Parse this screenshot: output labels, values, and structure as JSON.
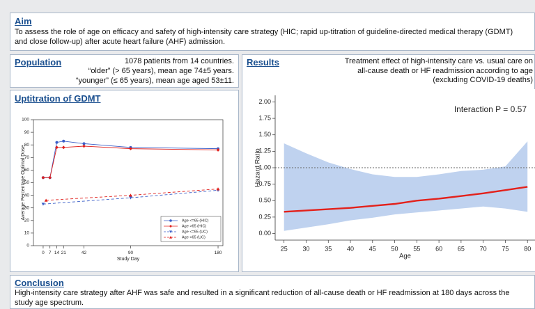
{
  "aim": {
    "title": "Aim",
    "text": "To assess the role of age on efficacy and safety of high-intensity care strategy (HIC; rapid up-titration of guideline-directed medical therapy (GDMT) and close follow-up) after acute heart failure (AHF) admission."
  },
  "population": {
    "title": "Population",
    "lines": [
      "1078 patients from 14 countries.",
      "“older” (> 65 years), mean age 74±5 years.",
      "“younger” (≤ 65 years), mean age aged 53±11."
    ]
  },
  "uptitration": {
    "title": "Uptitration of GDMT"
  },
  "results": {
    "title": "Results",
    "text": "Treatment effect of high-intensity care vs. usual care on all-cause death or HF readmission according to age (excluding COVID-19 deaths)"
  },
  "conclusion": {
    "title": "Conclusion",
    "text": "High-intensity care strategy after AHF was safe and resulted in a significant reduction of all-cause death or HF readmission at 180 days across the study age spectrum."
  },
  "chart_data": [
    {
      "type": "line",
      "xlabel": "Study Day",
      "ylabel": "Average Percentage Optimal Dose",
      "xlim": [
        -10,
        185
      ],
      "ylim": [
        0,
        100
      ],
      "xticks": [
        0,
        7,
        14,
        21,
        42,
        90,
        180
      ],
      "yticks": [
        0,
        10,
        20,
        30,
        40,
        50,
        60,
        70,
        80,
        90,
        100
      ],
      "legend": "lower right",
      "series": [
        {
          "name": "Age <=65 (HIC)",
          "color": "#3b5fc8",
          "marker": "circle",
          "dashed": false,
          "x": [
            0,
            7,
            14,
            21,
            42,
            90,
            180
          ],
          "values": [
            54,
            54,
            82,
            83,
            81,
            78,
            77
          ]
        },
        {
          "name": "Age >65 (HIC)",
          "color": "#e0201c",
          "marker": "diamond",
          "dashed": false,
          "x": [
            0,
            7,
            14,
            21,
            42,
            90,
            180
          ],
          "values": [
            54,
            54,
            78,
            78,
            79,
            77,
            76
          ]
        },
        {
          "name": "Age <=65 (UC)",
          "color": "#3b5fc8",
          "marker": "triangle-down",
          "dashed": true,
          "x": [
            0,
            90,
            180
          ],
          "values": [
            33,
            38,
            44
          ]
        },
        {
          "name": "Age >65 (UC)",
          "color": "#e0201c",
          "marker": "triangle-up",
          "dashed": true,
          "x": [
            3,
            90,
            180
          ],
          "values": [
            36,
            40,
            45
          ]
        }
      ]
    },
    {
      "type": "line",
      "xlabel": "Age",
      "ylabel": "Hazard Ratio",
      "annotation": "Interaction P = 0.57",
      "xlim": [
        23,
        81.7
      ],
      "ylim": [
        -0.1,
        2.1
      ],
      "xticks": [
        25,
        30,
        35,
        40,
        45,
        50,
        55,
        60,
        65,
        70,
        75,
        80
      ],
      "yticks": [
        {
          "value": 0,
          "label": "0.00"
        },
        {
          "value": 0.25,
          "label": "0.25"
        },
        {
          "value": 0.5,
          "label": "0.50"
        },
        {
          "value": 0.75,
          "label": "0.75"
        },
        {
          "value": 1,
          "label": "1.00"
        },
        {
          "value": 1.25,
          "label": "1.25"
        },
        {
          "value": 1.5,
          "label": "1.50"
        },
        {
          "value": 1.75,
          "label": "1.75"
        },
        {
          "value": 2,
          "label": "2.00"
        }
      ],
      "reference_line": 1,
      "series": [
        {
          "color": "#e3211b",
          "marker": "none",
          "dashed": false,
          "band_color": "#bfd2ef",
          "x": [
            25,
            30,
            35,
            40,
            45,
            50,
            55,
            60,
            65,
            70,
            75,
            80
          ],
          "values": [
            0.33,
            0.35,
            0.37,
            0.39,
            0.42,
            0.45,
            0.5,
            0.53,
            0.57,
            0.61,
            0.66,
            0.71
          ],
          "lower": [
            0.04,
            0.09,
            0.14,
            0.2,
            0.24,
            0.29,
            0.32,
            0.35,
            0.38,
            0.41,
            0.38,
            0.33
          ],
          "upper": [
            1.37,
            1.22,
            1.08,
            0.98,
            0.9,
            0.86,
            0.86,
            0.9,
            0.95,
            0.97,
            1.02,
            1.4
          ]
        }
      ]
    }
  ]
}
